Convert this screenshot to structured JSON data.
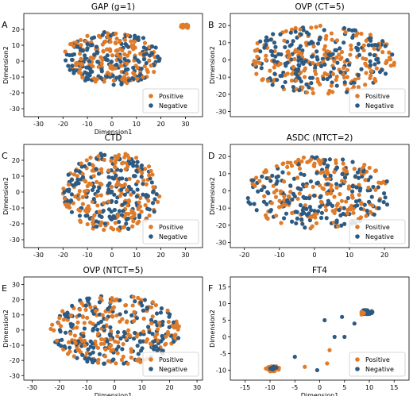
{
  "colors": {
    "positive": "#e07b29",
    "negative": "#2c5a82",
    "frame": "#000000"
  },
  "chart_data": [
    {
      "type": "scatter",
      "panel_letter": "A",
      "title": "GAP (g=1)",
      "xlabel": "Dimension1",
      "ylabel": "Dimension2",
      "xlim": [
        -36,
        37
      ],
      "ylim": [
        -35,
        30
      ],
      "xticks": [
        -30,
        -20,
        -10,
        0,
        10,
        20,
        30
      ],
      "yticks": [
        -30,
        -20,
        -10,
        0,
        10,
        20
      ],
      "legend": {
        "placement": "bottom-right",
        "entries": [
          "Positive",
          "Negative"
        ]
      },
      "cloud": {
        "cx": 0,
        "cy": 2,
        "rx": 20,
        "ry": 17
      },
      "clusters": [
        {
          "x": 30,
          "y": 22,
          "series": "Positive",
          "n": 18,
          "spread": 1.2
        }
      ],
      "series": [
        {
          "name": "Positive",
          "count": 160
        },
        {
          "name": "Negative",
          "count": 160
        }
      ]
    },
    {
      "type": "scatter",
      "panel_letter": "B",
      "title": "OVP (CT=5)",
      "xlabel": "",
      "ylabel": "Dimension2",
      "xlim": [
        -24,
        27
      ],
      "ylim": [
        -33,
        27
      ],
      "xticks": [],
      "yticks": [
        -30,
        -20,
        -10,
        0,
        10,
        20
      ],
      "legend": {
        "placement": "bottom-right",
        "entries": [
          "Positive",
          "Negative"
        ]
      },
      "cloud": {
        "cx": 2,
        "cy": 0,
        "rx": 21,
        "ry": 20
      },
      "clusters": [],
      "series": [
        {
          "name": "Positive",
          "count": 190
        },
        {
          "name": "Negative",
          "count": 190
        }
      ]
    },
    {
      "type": "scatter",
      "panel_letter": "C",
      "title": "CTD",
      "xlabel": "",
      "ylabel": "Dimension2",
      "xlim": [
        -36,
        37
      ],
      "ylim": [
        -35,
        30
      ],
      "xticks": [
        -30,
        -20,
        -10,
        0,
        10,
        20,
        30
      ],
      "yticks": [
        -30,
        -20,
        -10,
        0,
        10,
        20
      ],
      "legend": {
        "placement": "bottom-right",
        "entries": [
          "Positive",
          "Negative"
        ]
      },
      "cloud": {
        "cx": 0,
        "cy": 0,
        "rx": 20,
        "ry": 25
      },
      "clusters": [],
      "series": [
        {
          "name": "Positive",
          "count": 180
        },
        {
          "name": "Negative",
          "count": 180
        }
      ]
    },
    {
      "type": "scatter",
      "panel_letter": "D",
      "title": "ASDC (NTCT=2)",
      "xlabel": "",
      "ylabel": "Dimension2",
      "xlim": [
        -24,
        27
      ],
      "ylim": [
        -33,
        27
      ],
      "xticks": [
        -20,
        -10,
        0,
        10,
        20
      ],
      "yticks": [
        -30,
        -20,
        -10,
        0,
        10,
        20
      ],
      "legend": {
        "placement": "bottom-right",
        "entries": [
          "Positive",
          "Negative"
        ]
      },
      "cloud": {
        "cx": 1,
        "cy": -1,
        "rx": 21,
        "ry": 21
      },
      "clusters": [],
      "series": [
        {
          "name": "Positive",
          "count": 180
        },
        {
          "name": "Negative",
          "count": 180
        }
      ]
    },
    {
      "type": "scatter",
      "panel_letter": "E",
      "title": "OVP (NTCT=5)",
      "xlabel": "Dimension1",
      "ylabel": "Dimension2",
      "xlim": [
        -33,
        32
      ],
      "ylim": [
        -33,
        35
      ],
      "xticks": [
        -30,
        -20,
        -10,
        0,
        10,
        20,
        30
      ],
      "yticks": [
        -30,
        -20,
        -10,
        0,
        10,
        20,
        30
      ],
      "legend": {
        "placement": "bottom-right",
        "entries": [
          "Positive",
          "Negative"
        ]
      },
      "cloud": {
        "cx": 0,
        "cy": 0,
        "rx": 24,
        "ry": 23
      },
      "clusters": [],
      "series": [
        {
          "name": "Positive",
          "count": 185
        },
        {
          "name": "Negative",
          "count": 185
        }
      ]
    },
    {
      "type": "scatter",
      "panel_letter": "F",
      "title": "FT4",
      "xlabel": "Dimension1",
      "ylabel": "Dimension2",
      "xlim": [
        -18,
        18
      ],
      "ylim": [
        -13,
        18
      ],
      "xticks": [
        -15,
        -10,
        -5,
        0,
        5,
        10,
        15
      ],
      "yticks": [
        -10,
        -5,
        0,
        5,
        10,
        15
      ],
      "legend": {
        "placement": "bottom-right",
        "entries": [
          "Positive",
          "Negative"
        ]
      },
      "cloud": null,
      "clusters": [
        {
          "x": -9.5,
          "y": -9.5,
          "series": "Positive",
          "n": 26,
          "spread": 0.9
        },
        {
          "x": -9.5,
          "y": -9.3,
          "series": "Negative",
          "n": 10,
          "spread": 0.5
        },
        {
          "x": 9.5,
          "y": 7.5,
          "series": "Negative",
          "n": 32,
          "spread": 0.7
        },
        {
          "x": 9.0,
          "y": 7.2,
          "series": "Positive",
          "n": 4,
          "spread": 0.6
        }
      ],
      "points": [
        {
          "x": -3,
          "y": -9,
          "s": "Positive"
        },
        {
          "x": 1.5,
          "y": -8,
          "s": "Positive"
        },
        {
          "x": 2,
          "y": -4,
          "s": "Positive"
        },
        {
          "x": 3,
          "y": 0,
          "s": "Negative"
        },
        {
          "x": 1,
          "y": 5,
          "s": "Negative"
        },
        {
          "x": 4.5,
          "y": 6,
          "s": "Negative"
        },
        {
          "x": 5,
          "y": 0,
          "s": "Negative"
        },
        {
          "x": -5,
          "y": -6,
          "s": "Negative"
        },
        {
          "x": 7,
          "y": 4,
          "s": "Negative"
        },
        {
          "x": -0.5,
          "y": -10,
          "s": "Negative"
        }
      ],
      "series": [
        {
          "name": "Positive",
          "count": 32
        },
        {
          "name": "Negative",
          "count": 52
        }
      ]
    }
  ]
}
